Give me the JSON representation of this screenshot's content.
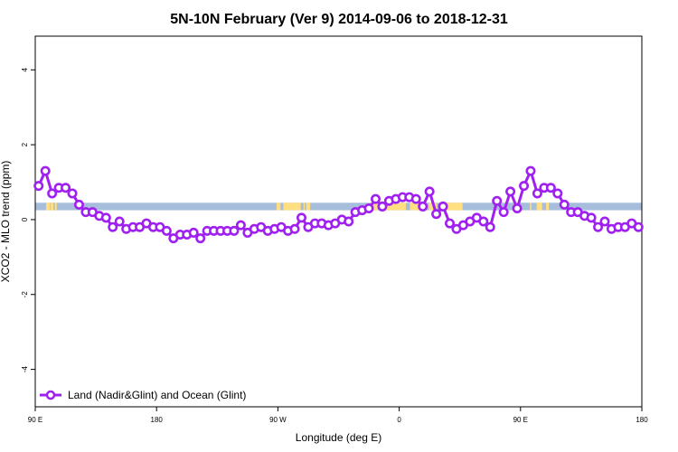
{
  "chart_data": {
    "type": "line",
    "title": "5N-10N February (Ver 9)   2014-09-06 to 2018-12-31",
    "xlabel": "Longitude (deg E)",
    "ylabel": "XCO2 - MLO trend (ppm)",
    "xlim": [
      90,
      540
    ],
    "ylim": [
      -5,
      4.9
    ],
    "x_ticks": [
      {
        "value": 90,
        "label": "90 E"
      },
      {
        "value": 180,
        "label": "180"
      },
      {
        "value": 270,
        "label": "90 W"
      },
      {
        "value": 360,
        "label": "0"
      },
      {
        "value": 450,
        "label": "90 E"
      },
      {
        "value": 540,
        "label": "180"
      }
    ],
    "y_ticks": [
      {
        "value": -4,
        "label": "-4"
      },
      {
        "value": -2,
        "label": "-2"
      },
      {
        "value": 0,
        "label": "0"
      },
      {
        "value": 2,
        "label": "2"
      },
      {
        "value": 4,
        "label": "4"
      }
    ],
    "grid": false,
    "legend_position": "bottom-left",
    "series": [
      {
        "name": "Land (Nadir&Glint) and Ocean (Glint)",
        "color": "#a020f0",
        "x": [
          92.5,
          97.5,
          102.5,
          107.5,
          112.5,
          117.5,
          122.5,
          127.5,
          132.5,
          137.5,
          142.5,
          147.5,
          152.5,
          157.5,
          162.5,
          167.5,
          172.5,
          177.5,
          182.5,
          187.5,
          192.5,
          197.5,
          202.5,
          207.5,
          212.5,
          217.5,
          222.5,
          227.5,
          232.5,
          237.5,
          242.5,
          247.5,
          252.5,
          257.5,
          262.5,
          267.5,
          272.5,
          277.5,
          282.5,
          287.5,
          292.5,
          297.5,
          302.5,
          307.5,
          312.5,
          317.5,
          322.5,
          327.5,
          332.5,
          337.5,
          342.5,
          347.5,
          352.5,
          357.5,
          362.5,
          367.5,
          372.5,
          377.5,
          382.5,
          387.5,
          392.5,
          397.5,
          402.5,
          407.5,
          412.5,
          417.5,
          422.5,
          427.5,
          432.5,
          437.5,
          442.5,
          447.5,
          452.5,
          457.5,
          462.5,
          467.5,
          472.5,
          477.5,
          482.5,
          487.5,
          492.5,
          497.5,
          502.5,
          507.5,
          512.5,
          517.5,
          522.5,
          527.5,
          532.5,
          537.5
        ],
        "values": [
          0.9,
          1.3,
          0.7,
          0.85,
          0.85,
          0.7,
          0.4,
          0.2,
          0.2,
          0.1,
          0.05,
          -0.2,
          -0.05,
          -0.25,
          -0.2,
          -0.2,
          -0.1,
          -0.2,
          -0.2,
          -0.3,
          -0.5,
          -0.4,
          -0.4,
          -0.35,
          -0.5,
          -0.3,
          -0.3,
          -0.3,
          -0.3,
          -0.3,
          -0.15,
          -0.35,
          -0.25,
          -0.2,
          -0.3,
          -0.25,
          -0.2,
          -0.3,
          -0.25,
          0.05,
          -0.2,
          -0.1,
          -0.1,
          -0.15,
          -0.1,
          0.0,
          -0.05,
          0.2,
          0.25,
          0.3,
          0.55,
          0.35,
          0.5,
          0.55,
          0.6,
          0.6,
          0.55,
          0.35,
          0.75,
          0.15,
          0.35,
          -0.1,
          -0.25,
          -0.15,
          -0.05,
          0.05,
          -0.05,
          -0.2,
          0.5,
          0.2,
          0.75,
          0.3,
          0.9,
          1.3,
          0.7,
          0.85,
          0.85,
          0.7,
          0.4,
          0.2,
          0.2,
          0.1,
          0.05,
          -0.2,
          -0.05,
          -0.25,
          -0.2,
          -0.2,
          -0.1,
          -0.2
        ]
      }
    ],
    "land_band": {
      "y_range": [
        0.25,
        0.45
      ],
      "ocean_color": "#a6bddb",
      "land_color": "#ffdf80",
      "land_segments": [
        [
          98,
          101
        ],
        [
          101.5,
          103.5
        ],
        [
          104.5,
          106
        ],
        [
          269,
          272
        ],
        [
          274,
          287
        ],
        [
          289,
          290
        ],
        [
          291,
          294
        ],
        [
          338,
          344
        ],
        [
          346,
          365
        ],
        [
          368,
          375
        ],
        [
          382,
          388
        ],
        [
          392,
          407
        ],
        [
          445,
          446
        ],
        [
          457,
          458
        ],
        [
          462,
          466
        ],
        [
          469,
          471
        ]
      ]
    }
  }
}
